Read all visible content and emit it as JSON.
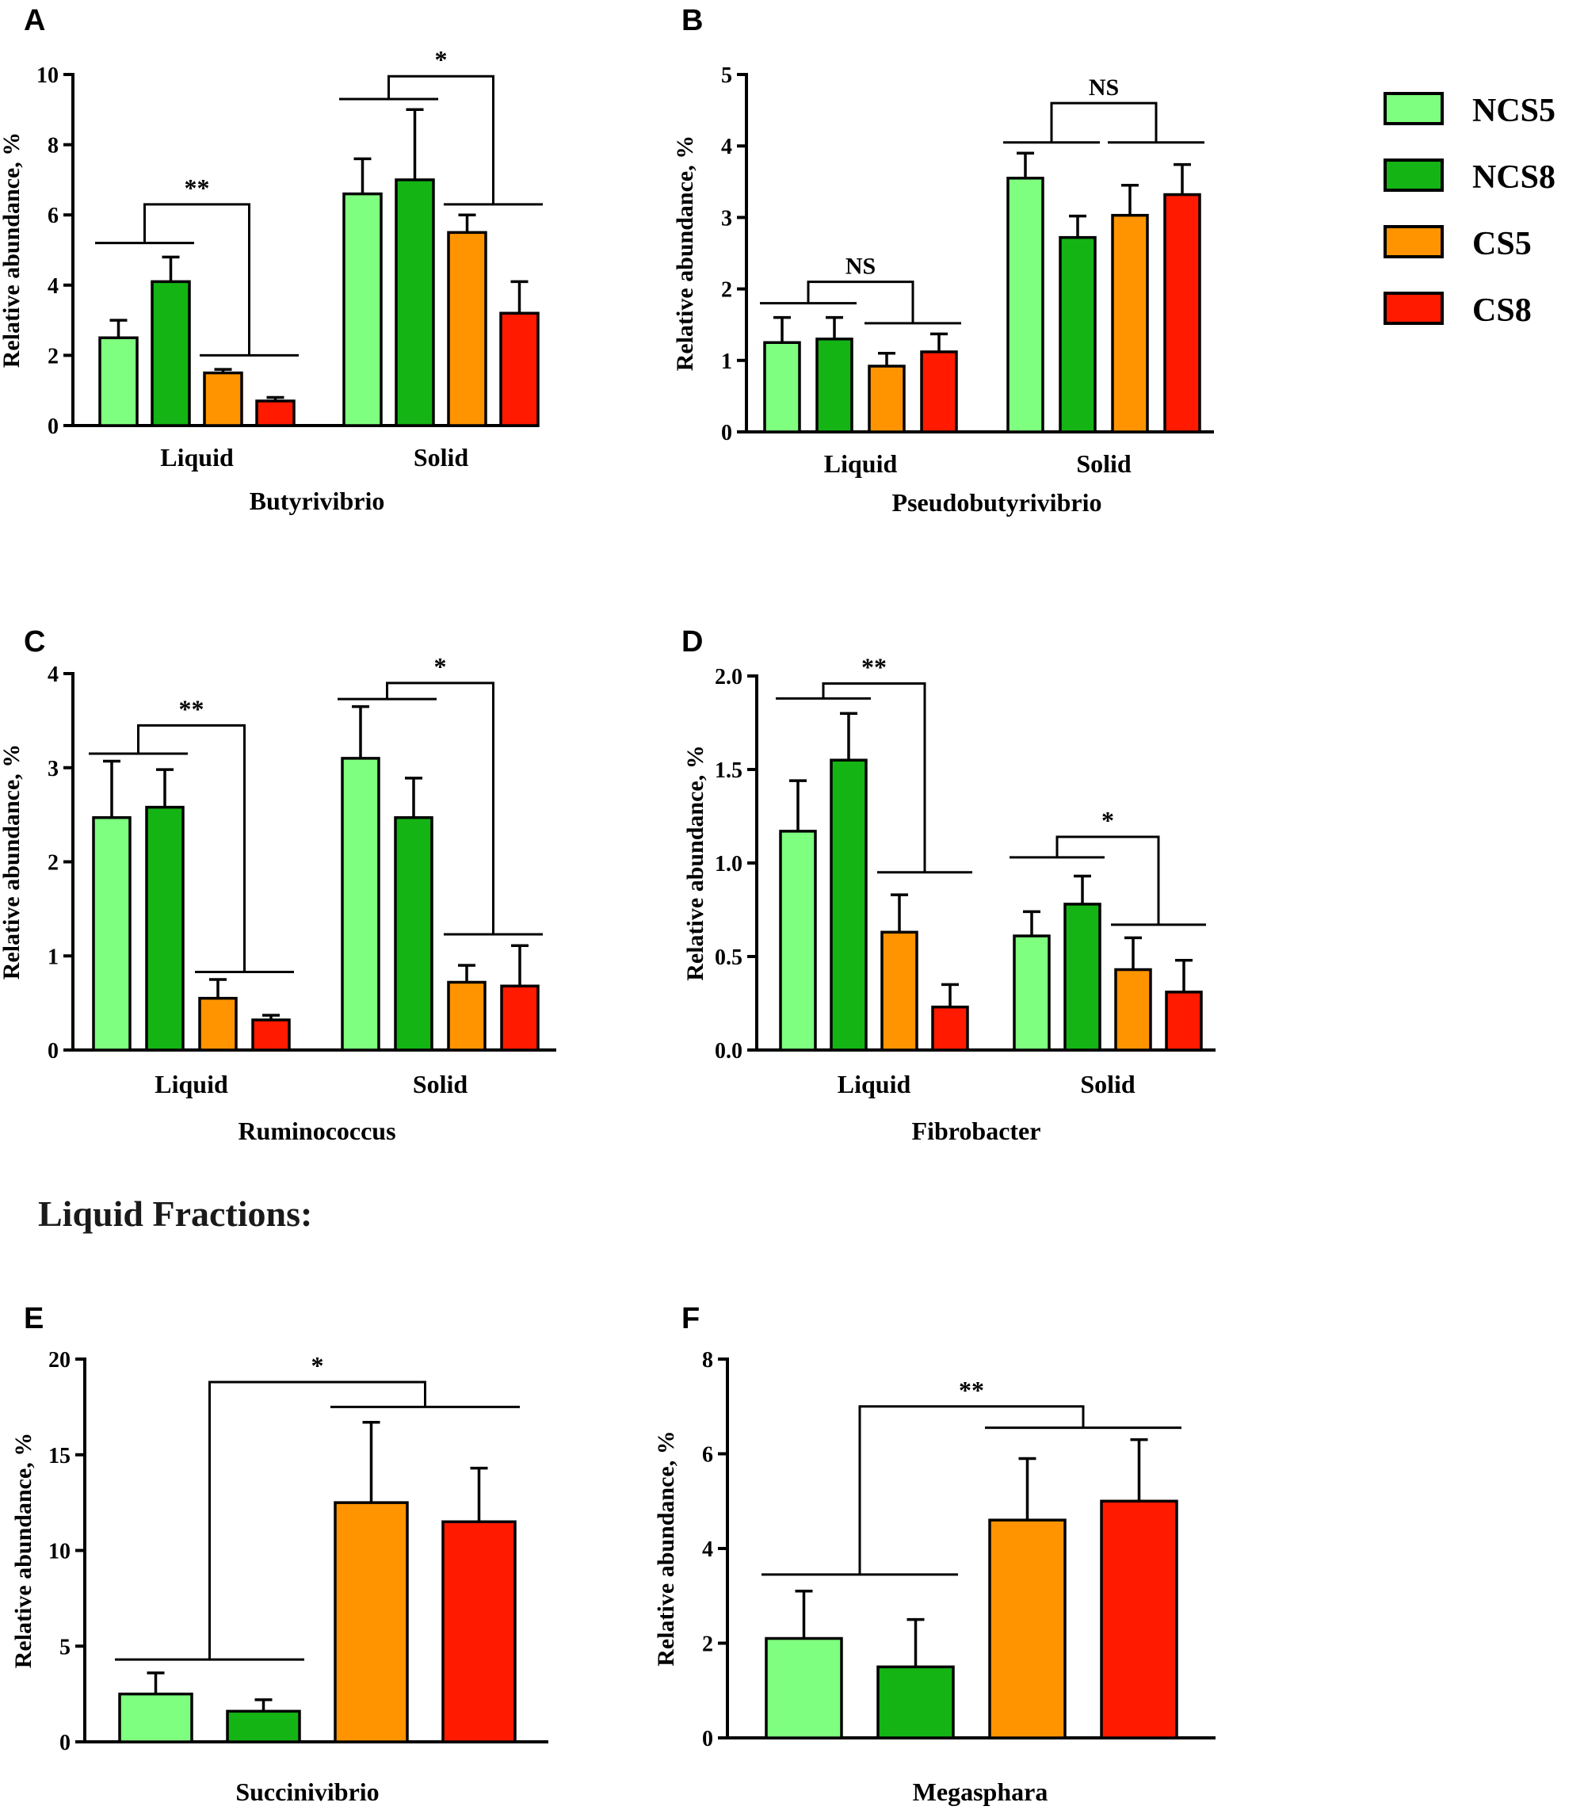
{
  "colors": {
    "NCS5": "#7fff7f",
    "NCS8": "#14b414",
    "CS5": "#ff9400",
    "CS8": "#ff1a00",
    "axis": "#000000"
  },
  "legend": {
    "items": [
      "NCS5",
      "NCS8",
      "CS5",
      "CS8"
    ]
  },
  "section_heading": "Liquid Fractions:",
  "chart_data": [
    {
      "id": "A",
      "type": "bar",
      "letter": "A",
      "title": "Butyrivibrio",
      "ylabel": "Relative abundance, %",
      "ylim": [
        0,
        10
      ],
      "yticks": [
        "0",
        "2",
        "4",
        "6",
        "8",
        "10"
      ],
      "groups": [
        "Liquid",
        "Solid"
      ],
      "series": [
        {
          "name": "NCS5",
          "values": [
            2.5,
            6.6
          ],
          "errors": [
            0.5,
            1.0
          ]
        },
        {
          "name": "NCS8",
          "values": [
            4.1,
            7.0
          ],
          "errors": [
            0.7,
            2.0
          ]
        },
        {
          "name": "CS5",
          "values": [
            1.5,
            5.5
          ],
          "errors": [
            0.1,
            0.5
          ]
        },
        {
          "name": "CS8",
          "values": [
            0.7,
            3.2
          ],
          "errors": [
            0.1,
            0.9
          ]
        }
      ],
      "significance": [
        {
          "label": "**",
          "group": 0,
          "left_level": 5.2,
          "right_level": 2.0,
          "bracket_top": 6.3
        },
        {
          "label": "*",
          "group": 1,
          "left_level": 9.3,
          "right_level": 6.3,
          "bracket_top": 9.95
        }
      ]
    },
    {
      "id": "B",
      "type": "bar",
      "letter": "B",
      "title": "Pseudobutyrivibrio",
      "ylabel": "Relative abundance, %",
      "ylim": [
        0,
        5
      ],
      "yticks": [
        "0",
        "1",
        "2",
        "3",
        "4",
        "5"
      ],
      "groups": [
        "Liquid",
        "Solid"
      ],
      "series": [
        {
          "name": "NCS5",
          "values": [
            1.25,
            3.55
          ],
          "errors": [
            0.35,
            0.35
          ]
        },
        {
          "name": "NCS8",
          "values": [
            1.3,
            2.72
          ],
          "errors": [
            0.3,
            0.3
          ]
        },
        {
          "name": "CS5",
          "values": [
            0.92,
            3.03
          ],
          "errors": [
            0.18,
            0.42
          ]
        },
        {
          "name": "CS8",
          "values": [
            1.12,
            3.32
          ],
          "errors": [
            0.25,
            0.42
          ]
        }
      ],
      "significance": [
        {
          "label": "NS",
          "group": 0,
          "left_level": 1.8,
          "right_level": 1.52,
          "bracket_top": 2.1
        },
        {
          "label": "NS",
          "group": 1,
          "left_level": 4.05,
          "right_level": 4.05,
          "bracket_top": 4.6
        }
      ]
    },
    {
      "id": "C",
      "type": "bar",
      "letter": "C",
      "title": "Ruminococcus",
      "ylabel": "Relative abundance, %",
      "ylim": [
        0,
        4
      ],
      "yticks": [
        "0",
        "1",
        "2",
        "3",
        "4"
      ],
      "groups": [
        "Liquid",
        "Solid"
      ],
      "series": [
        {
          "name": "NCS5",
          "values": [
            2.47,
            3.1
          ],
          "errors": [
            0.6,
            0.55
          ]
        },
        {
          "name": "NCS8",
          "values": [
            2.58,
            2.47
          ],
          "errors": [
            0.4,
            0.42
          ]
        },
        {
          "name": "CS5",
          "values": [
            0.55,
            0.72
          ],
          "errors": [
            0.2,
            0.18
          ]
        },
        {
          "name": "CS8",
          "values": [
            0.32,
            0.68
          ],
          "errors": [
            0.05,
            0.43
          ]
        }
      ],
      "significance": [
        {
          "label": "**",
          "group": 0,
          "left_level": 3.15,
          "right_level": 0.83,
          "bracket_top": 3.45
        },
        {
          "label": "*",
          "group": 1,
          "left_level": 3.73,
          "right_level": 1.23,
          "bracket_top": 3.9
        }
      ]
    },
    {
      "id": "D",
      "type": "bar",
      "letter": "D",
      "title": "Fibrobacter",
      "ylabel": "Relative abundance, %",
      "ylim": [
        0,
        2
      ],
      "yticks": [
        "0.0",
        "0.5",
        "1.0",
        "1.5",
        "2.0"
      ],
      "groups": [
        "Liquid",
        "Solid"
      ],
      "series": [
        {
          "name": "NCS5",
          "values": [
            1.17,
            0.61
          ],
          "errors": [
            0.27,
            0.13
          ]
        },
        {
          "name": "NCS8",
          "values": [
            1.55,
            0.78
          ],
          "errors": [
            0.25,
            0.15
          ]
        },
        {
          "name": "CS5",
          "values": [
            0.63,
            0.43
          ],
          "errors": [
            0.2,
            0.17
          ]
        },
        {
          "name": "CS8",
          "values": [
            0.23,
            0.31
          ],
          "errors": [
            0.12,
            0.17
          ]
        }
      ],
      "significance": [
        {
          "label": "**",
          "group": 0,
          "left_level": 1.88,
          "right_level": 0.95,
          "bracket_top": 1.96
        },
        {
          "label": "*",
          "group": 1,
          "left_level": 1.03,
          "right_level": 0.67,
          "bracket_top": 1.14
        }
      ]
    },
    {
      "id": "E",
      "type": "bar",
      "letter": "E",
      "title": "Succinivibrio",
      "ylabel": "Relative abundance, %",
      "ylim": [
        0,
        20
      ],
      "yticks": [
        "0",
        "5",
        "10",
        "15",
        "20"
      ],
      "groups": [],
      "series": [
        {
          "name": "NCS5",
          "values": [
            2.5
          ],
          "errors": [
            1.1
          ]
        },
        {
          "name": "NCS8",
          "values": [
            1.6
          ],
          "errors": [
            0.6
          ]
        },
        {
          "name": "CS5",
          "values": [
            12.5
          ],
          "errors": [
            4.2
          ]
        },
        {
          "name": "CS8",
          "values": [
            11.5
          ],
          "errors": [
            2.8
          ]
        }
      ],
      "significance": [
        {
          "label": "*",
          "group": 0,
          "left_level": 4.3,
          "right_level": 17.5,
          "bracket_top": 18.8
        }
      ]
    },
    {
      "id": "F",
      "type": "bar",
      "letter": "F",
      "title": "Megasphara",
      "ylabel": "Relative abundance, %",
      "ylim": [
        0,
        8
      ],
      "yticks": [
        "0",
        "2",
        "4",
        "6",
        "8"
      ],
      "groups": [],
      "series": [
        {
          "name": "NCS5",
          "values": [
            2.1
          ],
          "errors": [
            1.0
          ]
        },
        {
          "name": "NCS8",
          "values": [
            1.5
          ],
          "errors": [
            1.0
          ]
        },
        {
          "name": "CS5",
          "values": [
            4.6
          ],
          "errors": [
            1.3
          ]
        },
        {
          "name": "CS8",
          "values": [
            5.0
          ],
          "errors": [
            1.3
          ]
        }
      ],
      "significance": [
        {
          "label": "**",
          "group": 0,
          "left_level": 3.45,
          "right_level": 6.55,
          "bracket_top": 7.0
        }
      ]
    }
  ]
}
